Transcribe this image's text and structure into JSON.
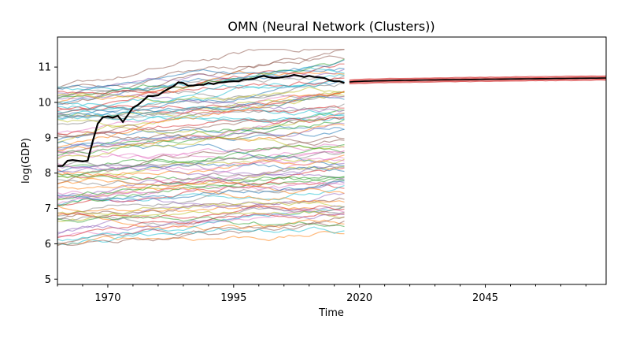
{
  "chart_data": {
    "type": "line",
    "title": "OMN (Neural Network (Clusters))",
    "xlabel": "Time",
    "ylabel": "log(GDP)",
    "xlim": [
      1960,
      2069
    ],
    "ylim": [
      4.85,
      11.85
    ],
    "x_ticks": [
      1970,
      1995,
      2020,
      2045
    ],
    "y_ticks": [
      5,
      6,
      7,
      8,
      9,
      10,
      11
    ],
    "grid": false,
    "legend": "none",
    "background_series_count": 90,
    "background_range": {
      "x_start": 1960,
      "x_end": 2017,
      "y_min": 5.3,
      "y_max": 11.5
    },
    "highlight": {
      "x": [
        1960,
        1961,
        1962,
        1963,
        1964,
        1965,
        1966,
        1967,
        1968,
        1969,
        1970,
        1971,
        1972,
        1973,
        1974,
        1975,
        1976,
        1977,
        1978,
        1979,
        1980,
        1981,
        1982,
        1983,
        1984,
        1985,
        1986,
        1987,
        1988,
        1989,
        1990,
        1991,
        1992,
        1993,
        1994,
        1995,
        1996,
        1997,
        1998,
        1999,
        2000,
        2001,
        2002,
        2003,
        2004,
        2005,
        2006,
        2007,
        2008,
        2009,
        2010,
        2011,
        2012,
        2013,
        2014,
        2015,
        2016,
        2017
      ],
      "values": [
        8.2,
        8.2,
        8.35,
        8.37,
        8.35,
        8.33,
        8.35,
        8.9,
        9.4,
        9.58,
        9.6,
        9.57,
        9.62,
        9.45,
        9.65,
        9.85,
        9.93,
        10.05,
        10.18,
        10.18,
        10.2,
        10.3,
        10.38,
        10.45,
        10.57,
        10.55,
        10.47,
        10.48,
        10.5,
        10.5,
        10.55,
        10.52,
        10.56,
        10.57,
        10.59,
        10.6,
        10.6,
        10.65,
        10.65,
        10.67,
        10.72,
        10.75,
        10.71,
        10.69,
        10.7,
        10.72,
        10.74,
        10.78,
        10.75,
        10.72,
        10.75,
        10.72,
        10.71,
        10.69,
        10.63,
        10.6,
        10.6,
        10.55
      ],
      "color": "#000000"
    },
    "forecast": {
      "x": [
        2018,
        2069
      ],
      "mean_start": 10.58,
      "mean_end": 10.69,
      "band_halfwidth": 0.07,
      "color": "#d62728",
      "mean_color": "#000000"
    },
    "colors": [
      "#1f77b4",
      "#ff7f0e",
      "#2ca02c",
      "#d62728",
      "#9467bd",
      "#8c564b",
      "#e377c2",
      "#7f7f7f",
      "#bcbd22",
      "#17becf"
    ]
  }
}
